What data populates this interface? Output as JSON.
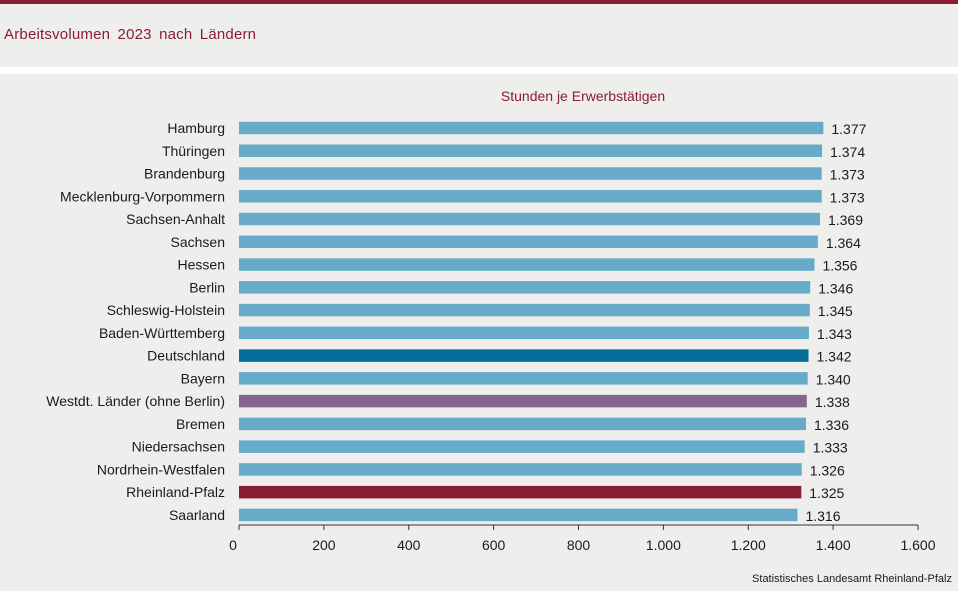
{
  "header": {
    "title": "Arbeitsvolumen  2023  nach Ländern"
  },
  "colors": {
    "default": "#67abc9",
    "deutschland": "#046f9b",
    "westdt": "#876390",
    "rheinland_pfalz": "#881c34",
    "brand": "#8a1c33"
  },
  "chart_data": {
    "type": "bar",
    "orientation": "horizontal",
    "title": "Stunden je Erwerbstätigen",
    "categories": [
      "Hamburg",
      "Thüringen",
      "Brandenburg",
      "Mecklenburg-Vorpommern",
      "Sachsen-Anhalt",
      "Sachsen",
      "Hessen",
      "Berlin",
      "Schleswig-Holstein",
      "Baden-Württemberg",
      "Deutschland",
      "Bayern",
      "Westdt. Länder (ohne Berlin)",
      "Bremen",
      "Niedersachsen",
      "Nordrhein-Westfalen",
      "Rheinland-Pfalz",
      "Saarland"
    ],
    "values": [
      1377,
      1374,
      1373,
      1373,
      1369,
      1364,
      1356,
      1346,
      1345,
      1343,
      1342,
      1340,
      1338,
      1336,
      1333,
      1326,
      1325,
      1316
    ],
    "value_labels": [
      "1.377",
      "1.374",
      "1.373",
      "1.373",
      "1.369",
      "1.364",
      "1.356",
      "1.346",
      "1.345",
      "1.343",
      "1.342",
      "1.340",
      "1.338",
      "1.336",
      "1.333",
      "1.326",
      "1.325",
      "1.316"
    ],
    "bar_colors": [
      "default",
      "default",
      "default",
      "default",
      "default",
      "default",
      "default",
      "default",
      "default",
      "default",
      "deutschland",
      "default",
      "westdt",
      "default",
      "default",
      "default",
      "rheinland_pfalz",
      "default"
    ],
    "xlim": [
      0,
      1600
    ],
    "xticks": [
      0,
      200,
      400,
      600,
      800,
      1000,
      1200,
      1400,
      1600
    ],
    "xtick_labels": [
      "0",
      "200",
      "400",
      "600",
      "800",
      "1.000",
      "1.200",
      "1.400",
      "1.600"
    ],
    "grid": false,
    "source": "Statistisches Landesamt  Rheinland-Pfalz"
  }
}
